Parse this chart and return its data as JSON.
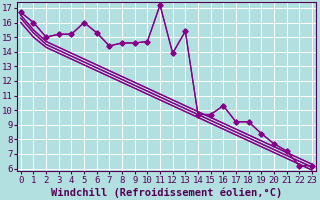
{
  "xlabel": "Windchill (Refroidissement éolien,°C)",
  "background_color": "#b2dfdf",
  "grid_color": "#ffffff",
  "line_color": "#880088",
  "xlim": [
    0,
    23
  ],
  "ylim": [
    6,
    17
  ],
  "xticks": [
    0,
    1,
    2,
    3,
    4,
    5,
    6,
    7,
    8,
    9,
    10,
    11,
    12,
    13,
    14,
    15,
    16,
    17,
    18,
    19,
    20,
    21,
    22,
    23
  ],
  "yticks": [
    6,
    7,
    8,
    9,
    10,
    11,
    12,
    13,
    14,
    15,
    16,
    17
  ],
  "series_main": [
    16.7,
    16.0,
    15.0,
    15.2,
    15.2,
    16.0,
    15.3,
    14.4,
    14.6,
    14.6,
    14.7,
    17.2,
    13.9,
    15.4,
    9.7,
    9.7,
    10.3,
    9.2,
    9.2,
    8.4,
    7.7,
    7.2,
    6.2,
    6.2
  ],
  "series_lin1": [
    16.5,
    15.5,
    14.7,
    14.3,
    13.9,
    13.5,
    13.1,
    12.7,
    12.3,
    11.9,
    11.5,
    11.1,
    10.7,
    10.3,
    9.9,
    9.5,
    9.1,
    8.7,
    8.3,
    7.9,
    7.5,
    7.1,
    6.7,
    6.3
  ],
  "series_lin2": [
    16.3,
    15.3,
    14.5,
    14.1,
    13.7,
    13.3,
    12.9,
    12.5,
    12.1,
    11.7,
    11.3,
    10.9,
    10.5,
    10.1,
    9.7,
    9.3,
    8.9,
    8.5,
    8.1,
    7.7,
    7.3,
    6.9,
    6.5,
    6.1
  ],
  "series_lin3": [
    16.0,
    15.0,
    14.3,
    13.9,
    13.5,
    13.1,
    12.7,
    12.3,
    11.9,
    11.5,
    11.1,
    10.7,
    10.3,
    9.9,
    9.5,
    9.1,
    8.7,
    8.3,
    7.9,
    7.5,
    7.1,
    6.7,
    6.3,
    5.9
  ],
  "tick_fontsize": 6.5,
  "label_fontsize": 7.5
}
